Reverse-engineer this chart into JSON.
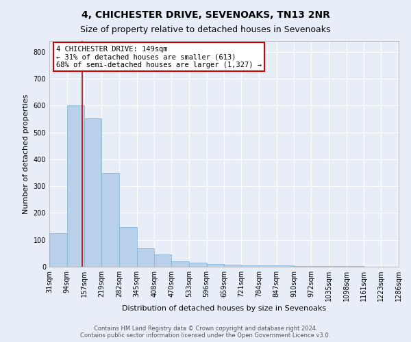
{
  "title": "4, CHICHESTER DRIVE, SEVENOAKS, TN13 2NR",
  "subtitle": "Size of property relative to detached houses in Sevenoaks",
  "xlabel": "Distribution of detached houses by size in Sevenoaks",
  "ylabel": "Number of detached properties",
  "bin_edges": [
    31,
    94,
    157,
    219,
    282,
    345,
    408,
    470,
    533,
    596,
    659,
    721,
    784,
    847,
    910,
    972,
    1035,
    1098,
    1161,
    1223,
    1286
  ],
  "bar_heights": [
    125,
    600,
    553,
    348,
    148,
    70,
    45,
    20,
    15,
    10,
    8,
    6,
    5,
    4,
    3,
    3,
    2,
    2,
    1,
    1
  ],
  "bar_color": "#b8d0ea",
  "bar_edgecolor": "#7aafd4",
  "bg_color": "#e8eef8",
  "fig_bg_color": "#e8eef8",
  "grid_color": "#ffffff",
  "property_size": 149,
  "vline_color": "#cc0000",
  "annotation_line1": "4 CHICHESTER DRIVE: 149sqm",
  "annotation_line2": "← 31% of detached houses are smaller (613)",
  "annotation_line3": "68% of semi-detached houses are larger (1,327) →",
  "annotation_box_color": "#cc0000",
  "ylim": [
    0,
    840
  ],
  "yticks": [
    0,
    100,
    200,
    300,
    400,
    500,
    600,
    700,
    800
  ],
  "footer_line1": "Contains HM Land Registry data © Crown copyright and database right 2024.",
  "footer_line2": "Contains public sector information licensed under the Open Government Licence v3.0.",
  "title_fontsize": 10,
  "subtitle_fontsize": 9,
  "tick_label_fontsize": 7,
  "ylabel_fontsize": 8,
  "xlabel_fontsize": 8,
  "annotation_fontsize": 7.5,
  "footer_fontsize": 6
}
